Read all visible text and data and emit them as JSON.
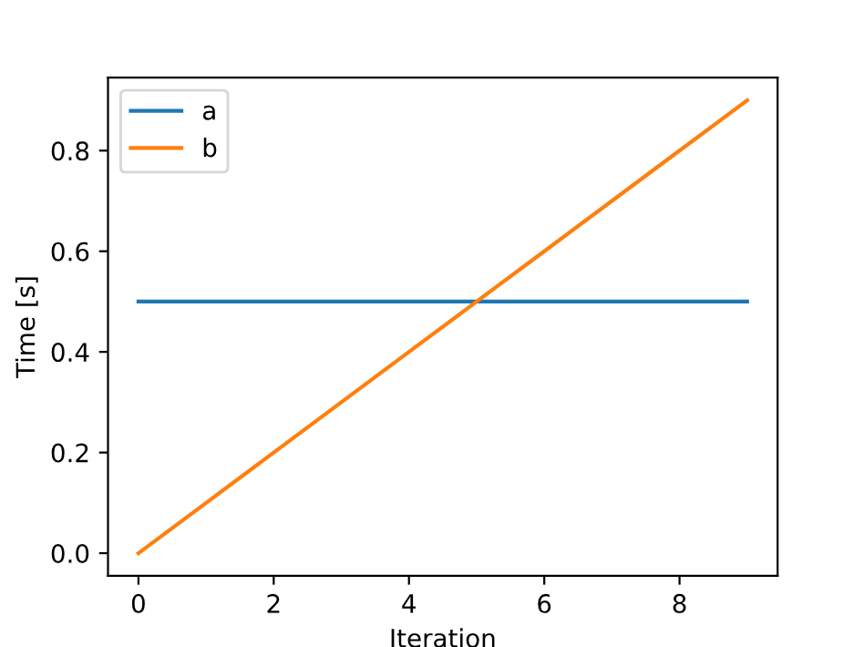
{
  "chart_data": {
    "type": "line",
    "xlabel": "Iteration",
    "ylabel": "Time [s]",
    "x": [
      0,
      1,
      2,
      3,
      4,
      5,
      6,
      7,
      8,
      9
    ],
    "series": [
      {
        "name": "a",
        "color": "#1f77b4",
        "values": [
          0.5,
          0.5,
          0.5,
          0.5,
          0.5,
          0.5,
          0.5,
          0.5,
          0.5,
          0.5
        ]
      },
      {
        "name": "b",
        "color": "#ff7f0e",
        "values": [
          0.0,
          0.1,
          0.2,
          0.3,
          0.4,
          0.5,
          0.6,
          0.7,
          0.8,
          0.9
        ]
      }
    ],
    "xlim": [
      -0.45,
      9.45
    ],
    "xticks": [
      0,
      2,
      4,
      6,
      8
    ],
    "ylim": [
      -0.045,
      0.945
    ],
    "yticks": [
      {
        "value": 0,
        "label": "0.0"
      },
      {
        "value": 0.2,
        "label": "0.2"
      },
      {
        "value": 0.4,
        "label": "0.4"
      },
      {
        "value": 0.6,
        "label": "0.6"
      },
      {
        "value": 0.8,
        "label": "0.8"
      }
    ],
    "legend": "top left",
    "grid": false
  }
}
